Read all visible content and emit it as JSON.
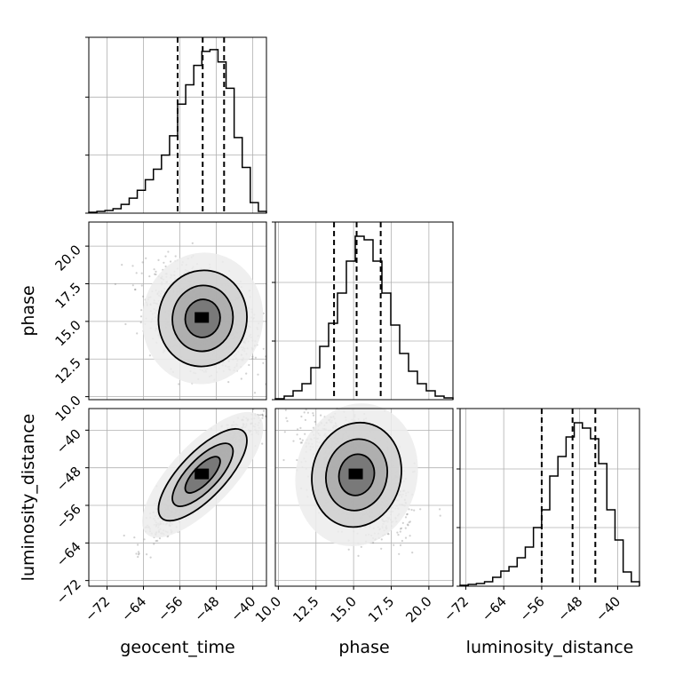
{
  "chart_data": {
    "type": "corner",
    "parameters": [
      "geocent_time",
      "phase",
      "luminosity_distance"
    ],
    "axis_labels": {
      "geocent_time": "geocent_time",
      "phase": "phase",
      "luminosity_distance": "luminosity_distance"
    },
    "ranges": {
      "geocent_time": [
        -76,
        -37
      ],
      "phase": [
        9.8,
        21.6
      ],
      "luminosity_distance": [
        -73.2,
        -35.4
      ]
    },
    "ticks": {
      "geocent_time": [
        {
          "value": -72,
          "label": "−72"
        },
        {
          "value": -64,
          "label": "−64"
        },
        {
          "value": -56,
          "label": "−56"
        },
        {
          "value": -48,
          "label": "−48"
        },
        {
          "value": -40,
          "label": "−40"
        }
      ],
      "phase": [
        {
          "value": 10.0,
          "label": "10.0"
        },
        {
          "value": 12.5,
          "label": "12.5"
        },
        {
          "value": 15.0,
          "label": "15.0"
        },
        {
          "value": 17.5,
          "label": "17.5"
        },
        {
          "value": 20.0,
          "label": "20.0"
        }
      ],
      "luminosity_distance": [
        {
          "value": -72,
          "label": "−72"
        },
        {
          "value": -64,
          "label": "−64"
        },
        {
          "value": -56,
          "label": "−56"
        },
        {
          "value": -48,
          "label": "−48"
        },
        {
          "value": -40,
          "label": "−40"
        }
      ]
    },
    "quantiles": {
      "geocent_time": [
        -56.5,
        -51.0,
        -46.3
      ],
      "phase": [
        13.7,
        15.2,
        16.8
      ],
      "luminosity_distance": [
        -56.0,
        -49.5,
        -44.7
      ]
    },
    "histograms": {
      "geocent_time": [
        0.005,
        0.01,
        0.015,
        0.025,
        0.05,
        0.085,
        0.13,
        0.19,
        0.25,
        0.33,
        0.44,
        0.62,
        0.73,
        0.84,
        0.92,
        0.93,
        0.86,
        0.71,
        0.43,
        0.26,
        0.06,
        0.01
      ],
      "phase": [
        0.005,
        0.02,
        0.05,
        0.09,
        0.18,
        0.3,
        0.43,
        0.6,
        0.78,
        0.92,
        0.9,
        0.78,
        0.6,
        0.42,
        0.26,
        0.16,
        0.09,
        0.05,
        0.02,
        0.01
      ],
      "luminosity_distance": [
        0.005,
        0.01,
        0.015,
        0.025,
        0.05,
        0.085,
        0.11,
        0.16,
        0.22,
        0.33,
        0.43,
        0.62,
        0.73,
        0.84,
        0.92,
        0.89,
        0.83,
        0.69,
        0.43,
        0.26,
        0.08,
        0.025
      ]
    },
    "sample_cloud": {
      "n_points": 1800,
      "seed": 12345
    },
    "grid": true
  }
}
